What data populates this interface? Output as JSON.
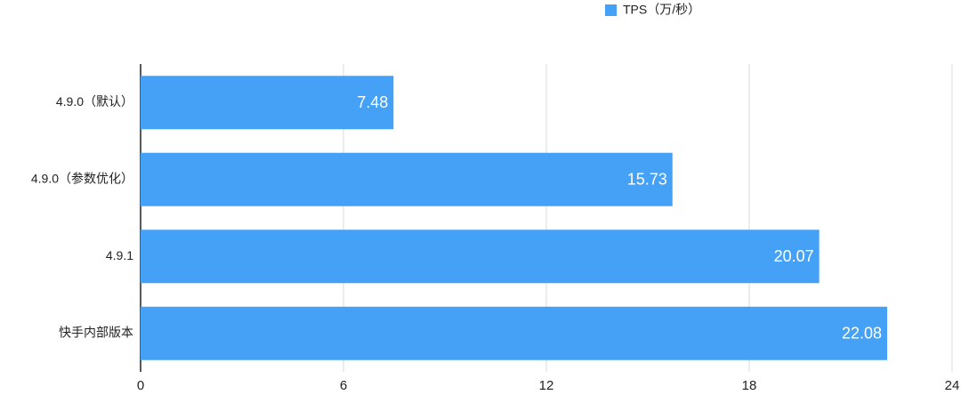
{
  "chart_data": {
    "type": "bar",
    "orientation": "horizontal",
    "categories": [
      "4.9.0（默认）",
      "4.9.0（参数优化）",
      "4.9.1",
      "快手内部版本"
    ],
    "series": [
      {
        "name": "TPS（万/秒）",
        "color": "#45a1f6",
        "values": [
          7.48,
          15.73,
          20.07,
          22.08
        ]
      }
    ],
    "xlim": [
      0,
      24
    ],
    "xticks": [
      0,
      6,
      12,
      18,
      24
    ],
    "grid": true,
    "legend": "top"
  }
}
